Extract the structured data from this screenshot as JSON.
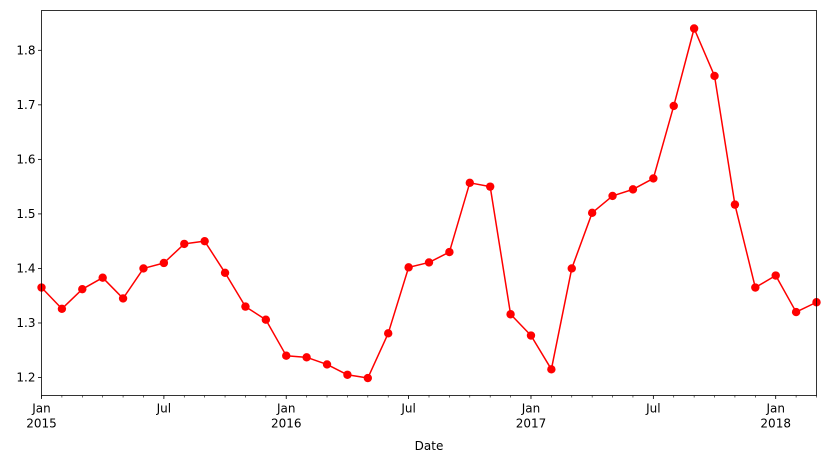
{
  "chart_data": {
    "type": "line",
    "title": "",
    "xlabel": "Date",
    "ylabel": "",
    "ylim": [
      1.167,
      1.873
    ],
    "xlim": [
      "2015-01",
      "2018-03"
    ],
    "line_color": "#ff0000",
    "marker": "circle",
    "grid": false,
    "legend": "none",
    "yticks": [
      {
        "value": 1.2,
        "label": "1.2"
      },
      {
        "value": 1.3,
        "label": "1.3"
      },
      {
        "value": 1.4,
        "label": "1.4"
      },
      {
        "value": 1.5,
        "label": "1.5"
      },
      {
        "value": 1.6,
        "label": "1.6"
      },
      {
        "value": 1.7,
        "label": "1.7"
      },
      {
        "value": 1.8,
        "label": "1.8"
      }
    ],
    "xticks": [
      {
        "date": "2015-01",
        "label": "Jan",
        "year": "2015"
      },
      {
        "date": "2015-07",
        "label": "Jul",
        "year": ""
      },
      {
        "date": "2016-01",
        "label": "Jan",
        "year": "2016"
      },
      {
        "date": "2016-07",
        "label": "Jul",
        "year": ""
      },
      {
        "date": "2017-01",
        "label": "Jan",
        "year": "2017"
      },
      {
        "date": "2017-07",
        "label": "Jul",
        "year": ""
      },
      {
        "date": "2018-01",
        "label": "Jan",
        "year": "2018"
      }
    ],
    "series": [
      {
        "x": [
          "2015-01",
          "2015-02",
          "2015-03",
          "2015-04",
          "2015-05",
          "2015-06",
          "2015-07",
          "2015-08",
          "2015-09",
          "2015-10",
          "2015-11",
          "2015-12",
          "2016-01",
          "2016-02",
          "2016-03",
          "2016-04",
          "2016-05",
          "2016-06",
          "2016-07",
          "2016-08",
          "2016-09",
          "2016-10",
          "2016-11",
          "2016-12",
          "2017-01",
          "2017-02",
          "2017-03",
          "2017-04",
          "2017-05",
          "2017-06",
          "2017-07",
          "2017-08",
          "2017-09",
          "2017-10",
          "2017-11",
          "2017-12",
          "2018-01",
          "2018-02",
          "2018-03"
        ],
        "values": [
          1.365,
          1.326,
          1.362,
          1.383,
          1.345,
          1.4,
          1.41,
          1.445,
          1.45,
          1.392,
          1.33,
          1.306,
          1.24,
          1.237,
          1.224,
          1.205,
          1.199,
          1.281,
          1.402,
          1.411,
          1.43,
          1.557,
          1.55,
          1.316,
          1.277,
          1.215,
          1.4,
          1.502,
          1.533,
          1.545,
          1.565,
          1.698,
          1.84,
          1.753,
          1.517,
          1.365,
          1.387,
          1.32,
          1.338
        ]
      }
    ]
  }
}
